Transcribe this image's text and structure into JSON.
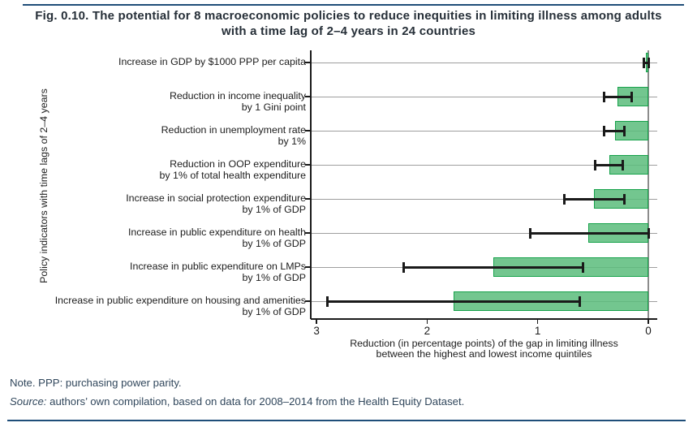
{
  "figure": {
    "title_line1": "Fig. 0.10. The potential for 8 macroeconomic policies to reduce inequities in limiting illness among adults",
    "title_line2": "with a time lag of 2–4 years in 24 countries"
  },
  "footer": {
    "note": "Note. PPP: purchasing power parity.",
    "source_label": "Source:",
    "source_text": " authors’ own compilation, based on data for 2008–2014 from the Health Equity Dataset."
  },
  "colors": {
    "accent_rule": "#1f4e79",
    "title_text": "#262f38",
    "footer_text": "#31475c",
    "bar_fill": "#5bbc7b",
    "bar_fill_rgba": "rgba(91,188,123,0.85)",
    "bar_border": "#17a24b",
    "error": "#1a1a1a",
    "grid": "#9e9e9e",
    "zero_line": "#8c8c8c",
    "axis": "#1a1a1a",
    "label_text": "#1c1c1c"
  },
  "chart_data": {
    "type": "bar",
    "orientation": "horizontal",
    "x_axis_reversed": true,
    "grid": true,
    "legend": "none",
    "xlabel_line1": "Reduction (in percentage points) of the gap in limiting illness",
    "xlabel_line2": "between the highest and lowest income quintiles",
    "ylabel": "Policy indicators with time lags of 2–4 years",
    "x_ticks": [
      3,
      2,
      1,
      0
    ],
    "xlim": [
      3.05,
      -0.08
    ],
    "categories": [
      [
        "Increase in GDP by $1000 PPP per capita"
      ],
      [
        "Reduction in income inequality",
        "by 1 Gini point"
      ],
      [
        "Reduction in unemployment rate",
        "by 1%"
      ],
      [
        "Reduction in OOP expenditure",
        "by 1% of total health expenditure"
      ],
      [
        "Increase in social protection expenditure",
        "by 1% of GDP"
      ],
      [
        "Increase in public expenditure on health",
        "by 1% of GDP"
      ],
      [
        "Increase in public expenditure on LMPs",
        "by 1% of GDP"
      ],
      [
        "Increase in public expenditure on housing and amenities",
        "by 1% of GDP"
      ]
    ],
    "series": [
      {
        "name": "Reduction in gap (percentage points)",
        "values": [
          0.02,
          0.28,
          0.3,
          0.35,
          0.49,
          0.54,
          1.4,
          1.76
        ]
      }
    ],
    "error_low": [
      0.0,
      0.15,
      0.22,
      0.23,
      0.22,
      0.0,
      0.59,
      0.62
    ],
    "error_high": [
      0.04,
      0.4,
      0.4,
      0.48,
      0.76,
      1.07,
      2.21,
      2.9
    ]
  }
}
